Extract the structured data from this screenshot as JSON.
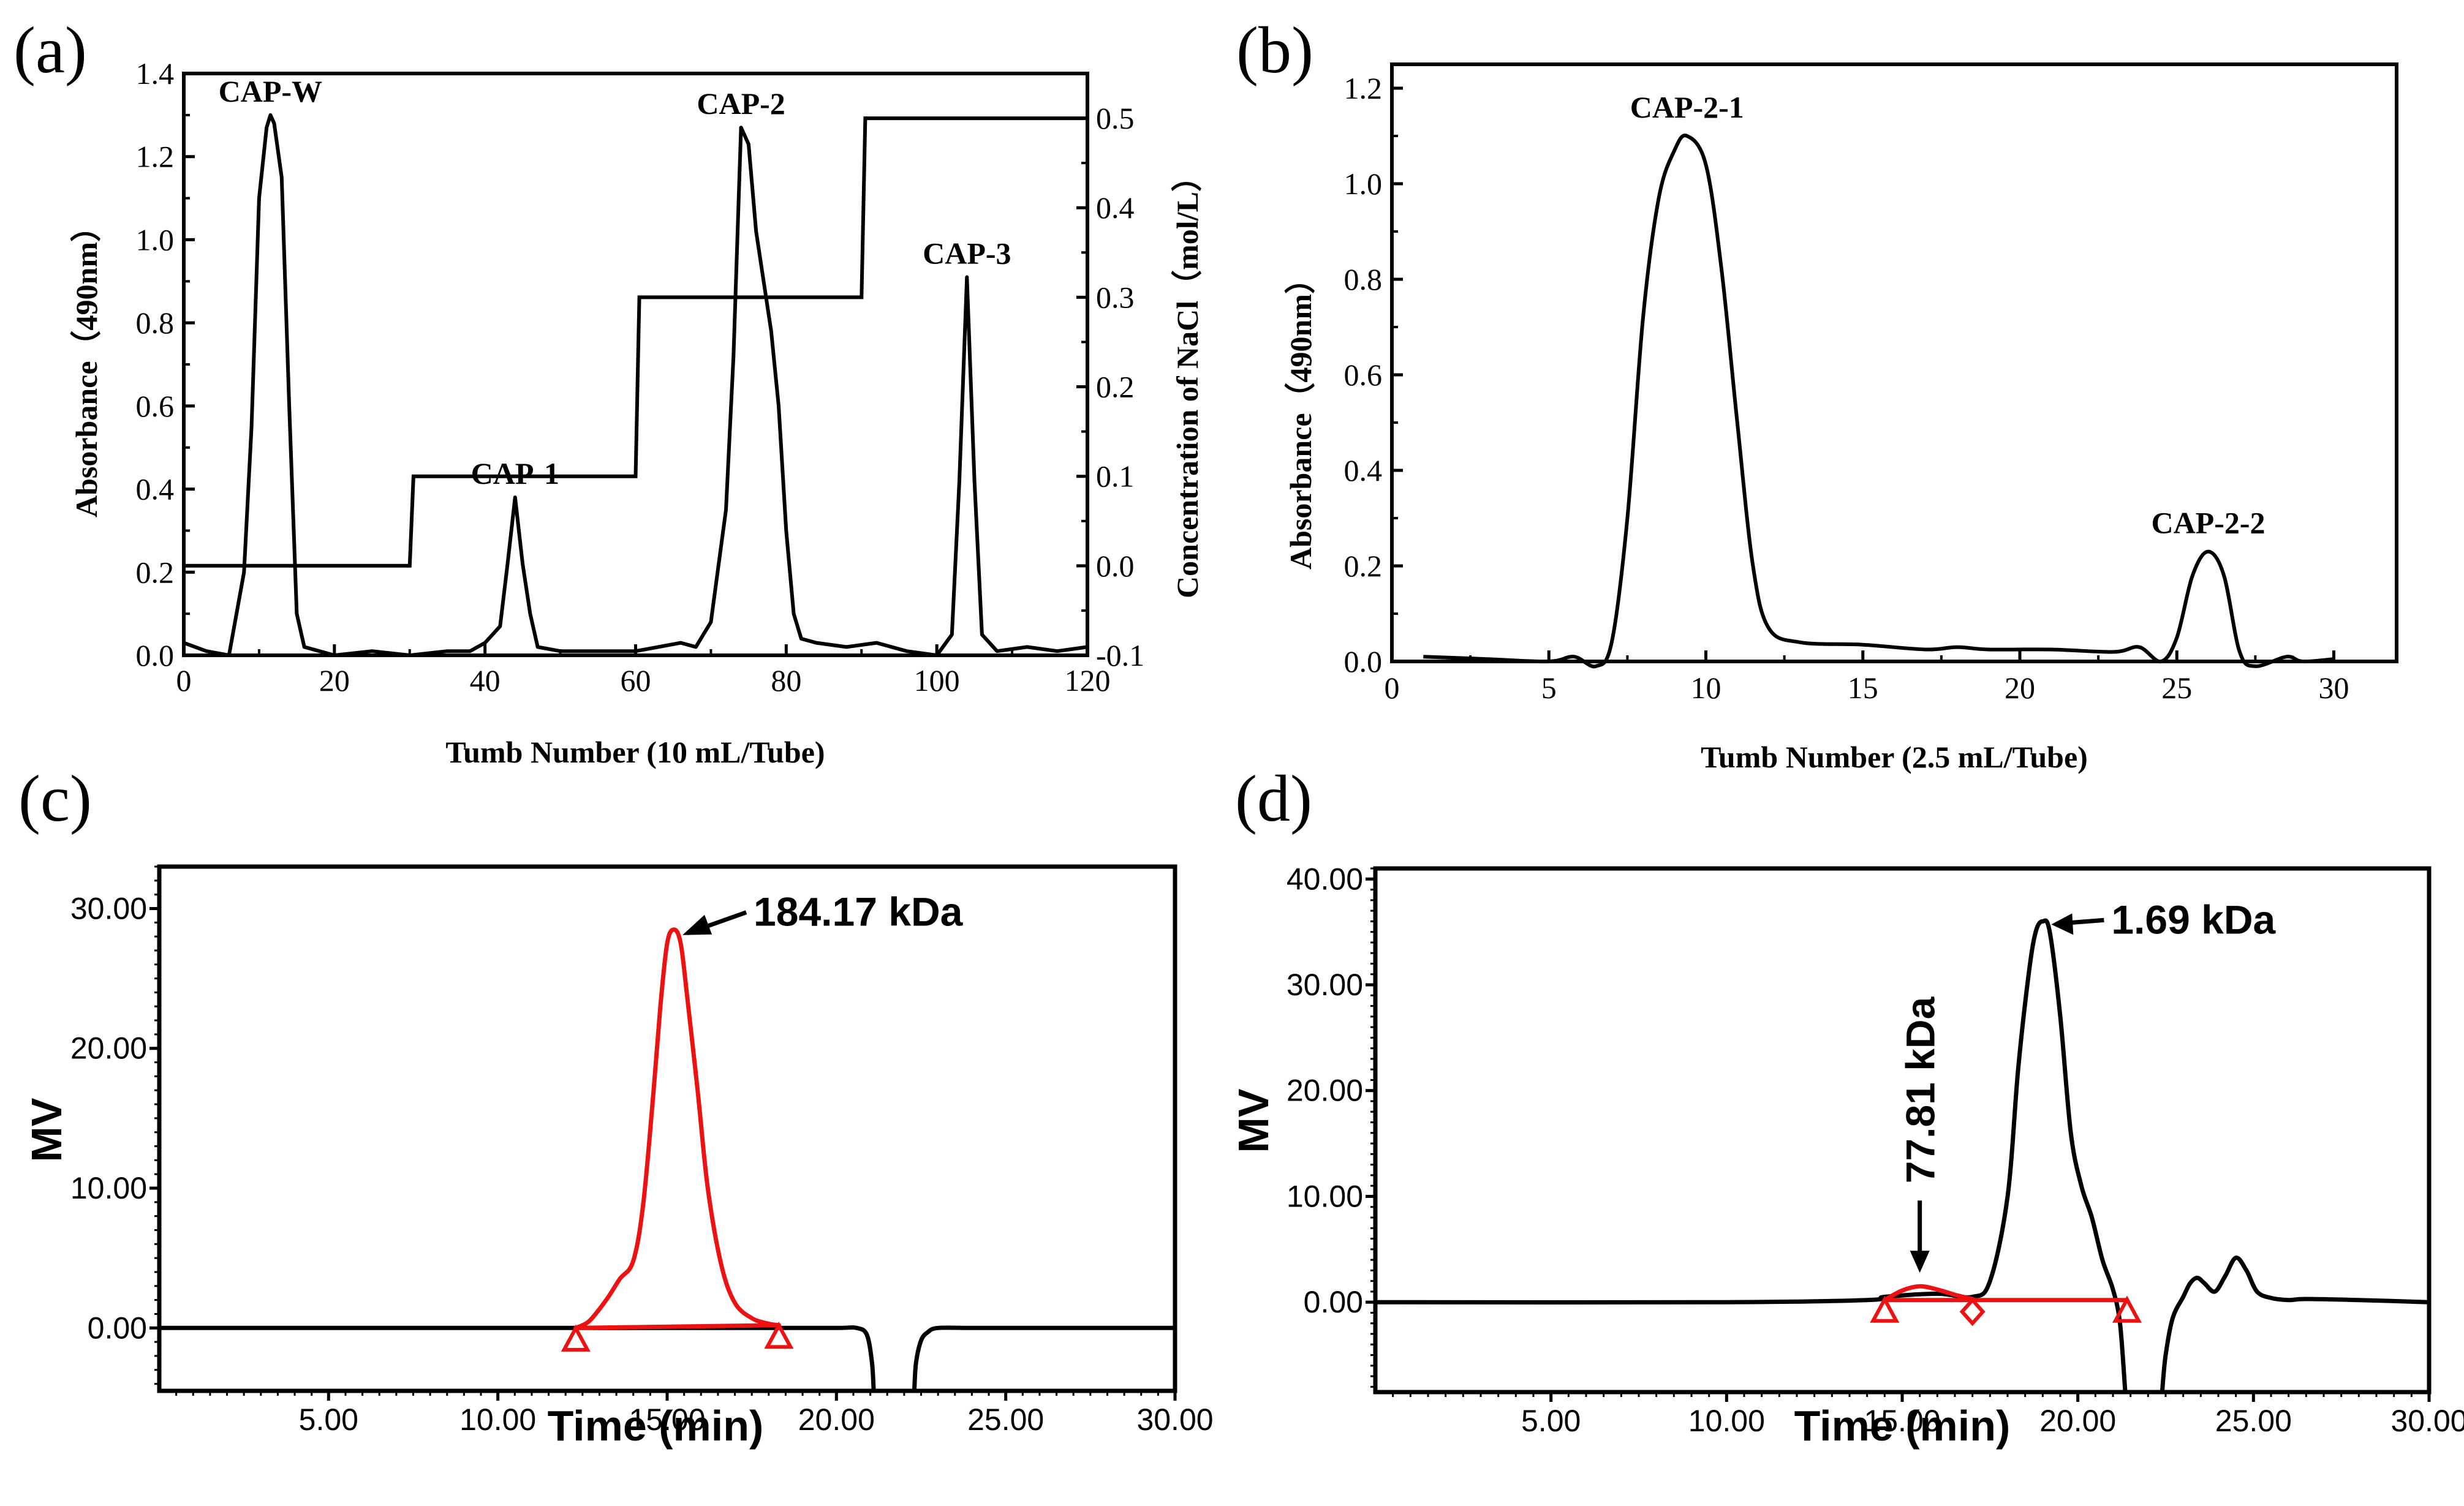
{
  "chart_data": [
    {
      "panel": "(a)",
      "type": "line",
      "xlabel": "Tumb Number (10 mL/Tube)",
      "ylabel": "Absorbance（490nm）",
      "y2label": "Concentration of NaCl（mol/L）",
      "xlim": [
        0,
        120
      ],
      "ylim": [
        0,
        1.4
      ],
      "y2lim": [
        -0.1,
        0.55
      ],
      "xticks": [
        "0",
        "20",
        "40",
        "60",
        "80",
        "100",
        "120"
      ],
      "yticks": [
        "0.0",
        "0.2",
        "0.4",
        "0.6",
        "0.8",
        "1.0",
        "1.2",
        "1.4"
      ],
      "y2ticks": [
        "-0.1",
        "0.0",
        "0.1",
        "0.2",
        "0.3",
        "0.4",
        "0.5"
      ],
      "grid": false,
      "peaks": [
        {
          "label": "CAP-W",
          "x": 11.5,
          "y": 1.3
        },
        {
          "label": "CAP-1",
          "x": 44,
          "y": 0.38
        },
        {
          "label": "CAP-2",
          "x": 74,
          "y": 1.27
        },
        {
          "label": "CAP-3",
          "x": 104,
          "y": 0.91
        }
      ],
      "series": [
        {
          "axis": "left",
          "x": [
            0,
            3,
            6,
            8,
            9,
            10,
            11,
            11.5,
            12,
            13,
            14,
            15,
            16,
            18,
            20,
            25,
            30,
            35,
            38,
            40,
            41,
            42,
            43,
            44,
            45,
            46,
            47,
            50,
            55,
            60,
            63,
            66,
            68,
            70,
            72,
            73,
            74,
            75,
            76,
            77,
            78,
            79,
            80,
            81,
            82,
            84,
            88,
            92,
            96,
            100,
            102,
            103,
            104,
            105,
            106,
            108,
            112,
            116,
            120
          ],
          "y": [
            0.03,
            0.01,
            0.0,
            0.2,
            0.55,
            1.1,
            1.27,
            1.3,
            1.28,
            1.15,
            0.6,
            0.1,
            0.02,
            0.01,
            0.0,
            0.01,
            0.0,
            0.01,
            0.01,
            0.03,
            0.05,
            0.07,
            0.22,
            0.38,
            0.22,
            0.1,
            0.02,
            0.01,
            0.01,
            0.01,
            0.02,
            0.03,
            0.02,
            0.08,
            0.35,
            0.72,
            1.27,
            1.23,
            1.02,
            0.9,
            0.78,
            0.6,
            0.3,
            0.1,
            0.04,
            0.03,
            0.02,
            0.03,
            0.01,
            0.0,
            0.05,
            0.42,
            0.91,
            0.42,
            0.05,
            0.01,
            0.02,
            0.01,
            0.02
          ]
        },
        {
          "axis": "right",
          "name": "NaCl",
          "x": [
            0,
            30,
            30.5,
            60,
            60.5,
            90,
            90.5,
            120
          ],
          "y": [
            0.0,
            0.0,
            0.1,
            0.1,
            0.3,
            0.3,
            0.5,
            0.5
          ]
        }
      ]
    },
    {
      "panel": "(b)",
      "type": "line",
      "xlabel": "Tumb Number (2.5 mL/Tube)",
      "ylabel": "Absorbance（490nm）",
      "xlim": [
        0,
        32
      ],
      "ylim": [
        0,
        1.25
      ],
      "xticks": [
        "0",
        "5",
        "10",
        "15",
        "20",
        "25",
        "30"
      ],
      "yticks": [
        "0.0",
        "0.2",
        "0.4",
        "0.6",
        "0.8",
        "1.0",
        "1.2"
      ],
      "grid": false,
      "peaks": [
        {
          "label": "CAP-2-1",
          "x": 9.4,
          "y": 1.1
        },
        {
          "label": "CAP-2-2",
          "x": 26,
          "y": 0.23
        }
      ],
      "series": [
        {
          "x": [
            1,
            3,
            5,
            5.8,
            6.5,
            7,
            7.5,
            8,
            8.5,
            9,
            9.4,
            10,
            10.5,
            11,
            11.5,
            12,
            13,
            15,
            17,
            18,
            19,
            21,
            23,
            23.8,
            24.5,
            25,
            25.5,
            26,
            26.5,
            27,
            27.5,
            28.5,
            29,
            30
          ],
          "y": [
            0.01,
            0.005,
            0.0,
            0.01,
            -0.01,
            0.04,
            0.3,
            0.72,
            0.97,
            1.07,
            1.1,
            1.04,
            0.82,
            0.5,
            0.2,
            0.07,
            0.04,
            0.035,
            0.025,
            0.03,
            0.025,
            0.025,
            0.02,
            0.03,
            0.0,
            0.05,
            0.18,
            0.23,
            0.18,
            0.02,
            -0.01,
            0.01,
            0.0,
            0.005
          ]
        }
      ]
    },
    {
      "panel": "(c)",
      "type": "line",
      "xlabel": "Time (min)",
      "ylabel": "MV",
      "xlim": [
        0,
        30
      ],
      "ylim": [
        -4.5,
        33
      ],
      "xticks": [
        "5.00",
        "10.00",
        "15.00",
        "20.00",
        "25.00",
        "30.00"
      ],
      "yticks": [
        "0.00",
        "10.00",
        "20.00",
        "30.00"
      ],
      "grid": false,
      "annotations": [
        {
          "label": "184.17 kDa",
          "x": 15.2,
          "y": 28.5
        }
      ],
      "series": [
        {
          "color": "#000000",
          "x": [
            0,
            5,
            10,
            12,
            18,
            20,
            20.6,
            20.9,
            21.05,
            21.1
          ],
          "y": [
            0,
            0,
            0,
            0,
            0,
            0,
            0,
            -0.5,
            -2.5,
            -4.5
          ]
        },
        {
          "color": "#000000",
          "x": [
            22.3,
            22.35,
            22.5,
            22.7,
            23,
            24,
            26,
            30
          ],
          "y": [
            -4.5,
            -2.5,
            -0.9,
            -0.3,
            0,
            0,
            0,
            0
          ]
        },
        {
          "color": "#ee1111",
          "x": [
            12.3,
            12.7,
            13.2,
            13.6,
            14.0,
            14.3,
            14.6,
            14.8,
            15.0,
            15.2,
            15.4,
            15.6,
            15.9,
            16.2,
            16.6,
            17.0,
            17.5,
            18.0,
            18.3
          ],
          "y": [
            0,
            0.5,
            2.0,
            3.5,
            4.8,
            9,
            17,
            23,
            27.5,
            28.5,
            27.5,
            23.5,
            17,
            10,
            4.5,
            1.8,
            0.7,
            0.3,
            0.2
          ]
        },
        {
          "color": "#ee1111",
          "x": [
            12.3,
            18.3
          ],
          "y": [
            0,
            0.2
          ]
        }
      ],
      "markers": [
        {
          "shape": "triangle",
          "color": "#ee1111",
          "x": 12.3,
          "y": -0.9
        },
        {
          "shape": "triangle",
          "color": "#ee1111",
          "x": 18.3,
          "y": -0.7
        }
      ]
    },
    {
      "panel": "(d)",
      "type": "line",
      "xlabel": "Time (min)",
      "ylabel": "MV",
      "xlim": [
        0,
        30
      ],
      "ylim": [
        -8.5,
        41
      ],
      "xticks": [
        "5.00",
        "10.00",
        "15.00",
        "20.00",
        "25.00",
        "30.00"
      ],
      "yticks": [
        "0.00",
        "10.00",
        "20.00",
        "30.00",
        "40.00"
      ],
      "grid": false,
      "annotations": [
        {
          "label": "1.69 kDa",
          "x": 19.0,
          "y": 36
        },
        {
          "label": "77.81 kDa",
          "x": 15.5,
          "y": 1.5
        }
      ],
      "series": [
        {
          "color": "#000000",
          "x": [
            0,
            10,
            14,
            14.5,
            16,
            17,
            17.5,
            18,
            18.3,
            18.6,
            18.8,
            19.0,
            19.2,
            19.5,
            19.8,
            20.1,
            20.4,
            20.7,
            21.0,
            21.2,
            21.35
          ],
          "y": [
            0,
            0,
            0.2,
            0.5,
            0.8,
            0.5,
            2,
            10,
            22,
            31,
            35,
            36,
            35,
            27,
            16,
            11,
            8,
            4,
            1.2,
            -2,
            -8.5
          ]
        },
        {
          "color": "#000000",
          "x": [
            22.4,
            22.5,
            22.7,
            23.0,
            23.2,
            23.4,
            23.6,
            23.9,
            24.2,
            24.5,
            24.8,
            25.1,
            25.5,
            26.0,
            26.5,
            28,
            30
          ],
          "y": [
            -8.5,
            -5,
            -1.5,
            0.5,
            1.8,
            2.3,
            1.8,
            1.0,
            2.5,
            4.2,
            3.0,
            1.0,
            0.4,
            0.2,
            0.3,
            0.2,
            0
          ],
          "note": ""
        },
        {
          "color": "#ee1111",
          "x": [
            14.5,
            15.0,
            15.5,
            16.0,
            16.5,
            17.0
          ],
          "y": [
            0.2,
            1.1,
            1.5,
            1.2,
            0.7,
            0.3
          ]
        },
        {
          "color": "#ee1111",
          "x": [
            14.5,
            21.4
          ],
          "y": [
            0.2,
            0.2
          ]
        }
      ],
      "markers": [
        {
          "shape": "triangle",
          "color": "#ee1111",
          "x": 14.5,
          "y": -0.9
        },
        {
          "shape": "diamond",
          "color": "#ee1111",
          "x": 17.0,
          "y": -0.9
        },
        {
          "shape": "triangle",
          "color": "#ee1111",
          "x": 21.4,
          "y": -0.9
        }
      ]
    }
  ]
}
